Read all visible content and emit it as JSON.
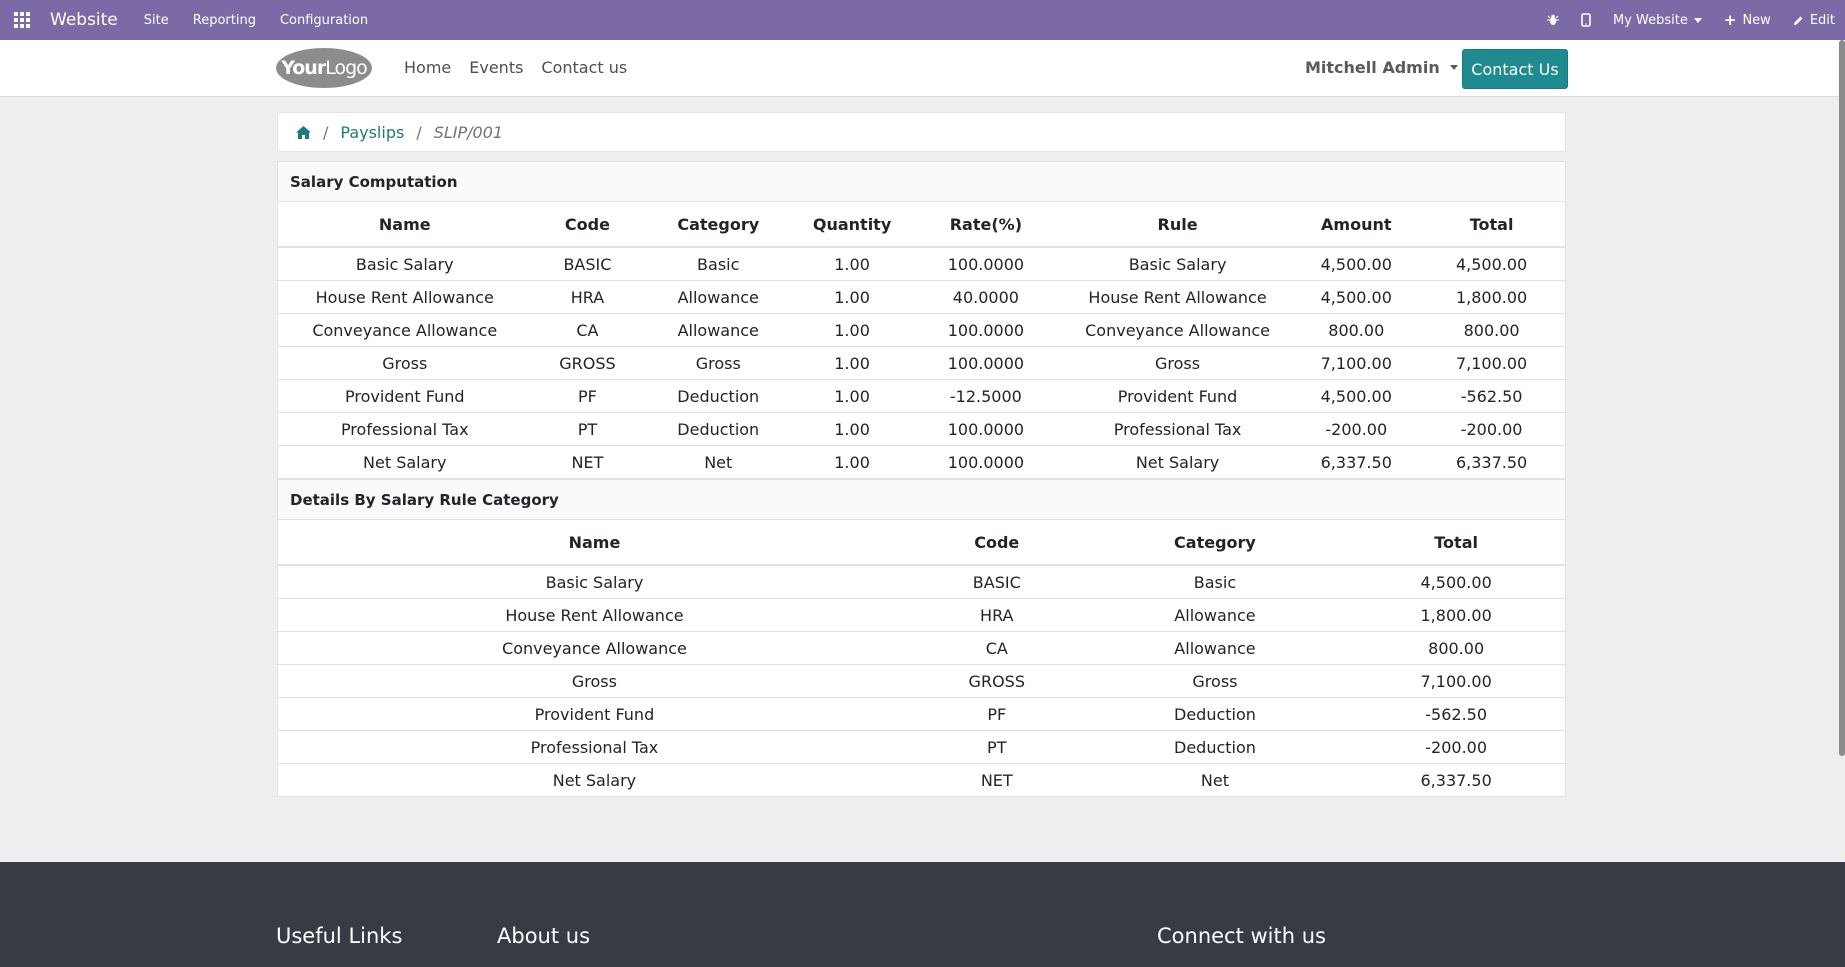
{
  "topbar": {
    "brand": "Website",
    "menus": [
      "Site",
      "Reporting",
      "Configuration"
    ],
    "website_selector": "My Website",
    "new_label": "New",
    "edit_label": "Edit"
  },
  "header": {
    "logo_bold": "Your",
    "logo_light": "Logo",
    "nav": [
      "Home",
      "Events",
      "Contact us"
    ],
    "user": "Mitchell Admin",
    "contact_button": "Contact Us"
  },
  "breadcrumb": {
    "items": [
      "Payslips",
      "SLIP/001"
    ]
  },
  "salary_computation": {
    "title": "Salary Computation",
    "columns": [
      "Name",
      "Code",
      "Category",
      "Quantity",
      "Rate(%)",
      "Rule",
      "Amount",
      "Total"
    ],
    "rows": [
      [
        "Basic Salary",
        "BASIC",
        "Basic",
        "1.00",
        "100.0000",
        "Basic Salary",
        "4,500.00",
        "4,500.00"
      ],
      [
        "House Rent Allowance",
        "HRA",
        "Allowance",
        "1.00",
        "40.0000",
        "House Rent Allowance",
        "4,500.00",
        "1,800.00"
      ],
      [
        "Conveyance Allowance",
        "CA",
        "Allowance",
        "1.00",
        "100.0000",
        "Conveyance Allowance",
        "800.00",
        "800.00"
      ],
      [
        "Gross",
        "GROSS",
        "Gross",
        "1.00",
        "100.0000",
        "Gross",
        "7,100.00",
        "7,100.00"
      ],
      [
        "Provident Fund",
        "PF",
        "Deduction",
        "1.00",
        "-12.5000",
        "Provident Fund",
        "4,500.00",
        "-562.50"
      ],
      [
        "Professional Tax",
        "PT",
        "Deduction",
        "1.00",
        "100.0000",
        "Professional Tax",
        "-200.00",
        "-200.00"
      ],
      [
        "Net Salary",
        "NET",
        "Net",
        "1.00",
        "100.0000",
        "Net Salary",
        "6,337.50",
        "6,337.50"
      ]
    ]
  },
  "details_by_category": {
    "title": "Details By Salary Rule Category",
    "columns": [
      "Name",
      "Code",
      "Category",
      "Total"
    ],
    "rows": [
      [
        "Basic Salary",
        "BASIC",
        "Basic",
        "4,500.00"
      ],
      [
        "House Rent Allowance",
        "HRA",
        "Allowance",
        "1,800.00"
      ],
      [
        "Conveyance Allowance",
        "CA",
        "Allowance",
        "800.00"
      ],
      [
        "Gross",
        "GROSS",
        "Gross",
        "7,100.00"
      ],
      [
        "Provident Fund",
        "PF",
        "Deduction",
        "-562.50"
      ],
      [
        "Professional Tax",
        "PT",
        "Deduction",
        "-200.00"
      ],
      [
        "Net Salary",
        "NET",
        "Net",
        "6,337.50"
      ]
    ]
  },
  "footer": {
    "useful_links": "Useful Links",
    "about_us": "About us",
    "connect": "Connect with us"
  },
  "colors": {
    "topbar": "#7c6aa6",
    "primary": "#1f8a8f",
    "footer": "#363b44"
  }
}
